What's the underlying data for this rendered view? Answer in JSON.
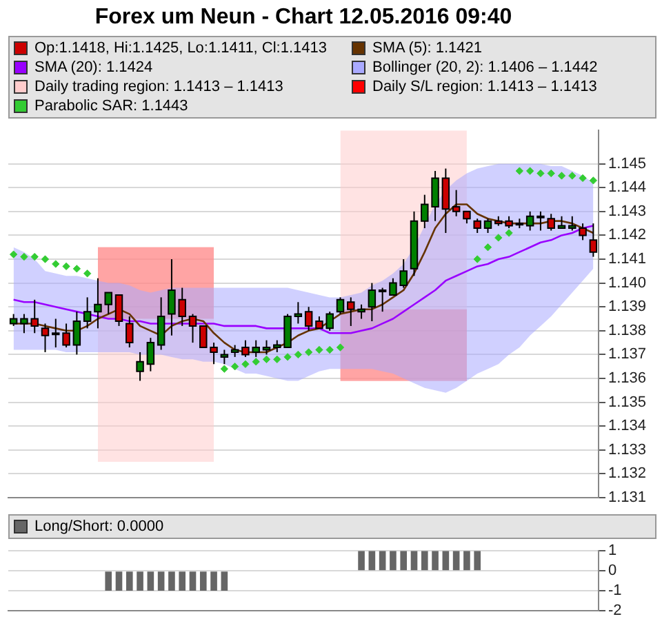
{
  "chart_data": [
    {
      "type": "candlestick",
      "title": "Forex um Neun - Chart 12.05.2016 09:40",
      "tick_labels": "y",
      "grid": "y",
      "legend": "top",
      "categories": [
        null,
        null,
        null,
        null,
        null,
        null,
        null,
        null,
        null,
        null,
        null,
        null,
        null,
        null,
        null,
        null,
        null,
        null,
        null,
        null,
        null,
        null,
        null,
        null,
        null,
        null,
        null,
        null,
        null,
        null,
        null,
        null,
        null,
        null,
        null,
        null,
        null,
        null,
        null,
        null,
        null,
        null,
        null,
        null,
        null,
        null,
        null,
        null,
        null,
        null,
        null,
        null,
        null,
        null,
        null,
        null
      ],
      "ylim": [
        1.131,
        1.1464
      ],
      "yticks": [
        1.131,
        1.132,
        1.133,
        1.134,
        1.135,
        1.136,
        1.137,
        1.138,
        1.139,
        {
          "value": 1.14,
          "label": "1.140"
        },
        1.141,
        1.142,
        1.143,
        1.144,
        1.145
      ],
      "series": [
        {
          "type": "candlestick",
          "name": "Op:1.1418, Hi:1.1425, Lo:1.1411, Cl:1.1413",
          "color": "#cc0000",
          "ohlc": [
            [
              1.1383,
              1.1387,
              1.1382,
              1.1385
            ],
            [
              1.1383,
              1.1387,
              1.1379,
              1.1385
            ],
            [
              1.1385,
              1.1393,
              1.1379,
              1.1382
            ],
            [
              1.1381,
              1.1383,
              1.1371,
              1.1378
            ],
            [
              1.1379,
              1.1385,
              1.1373,
              1.1379
            ],
            [
              1.1379,
              1.1383,
              1.1373,
              1.1374
            ],
            [
              1.1374,
              1.1388,
              1.137,
              1.1384
            ],
            [
              1.1384,
              1.1394,
              1.1381,
              1.1388
            ],
            [
              1.1388,
              1.1402,
              1.1381,
              1.1391
            ],
            [
              1.1391,
              1.1396,
              1.1387,
              1.1396
            ],
            [
              1.1395,
              1.1395,
              1.1382,
              1.1384
            ],
            [
              1.1383,
              1.1386,
              1.1373,
              1.1375
            ],
            [
              1.1363,
              1.1371,
              1.1359,
              1.1367
            ],
            [
              1.1366,
              1.1377,
              1.1363,
              1.1375
            ],
            [
              1.1374,
              1.1394,
              1.1372,
              1.1386
            ],
            [
              1.1387,
              1.141,
              1.1378,
              1.1397
            ],
            [
              1.1393,
              1.1398,
              1.1382,
              1.1386
            ],
            [
              1.1386,
              1.1387,
              1.1375,
              1.1382
            ],
            [
              1.1382,
              1.1382,
              1.1373,
              1.1373
            ],
            [
              1.1373,
              1.1375,
              1.1366,
              1.1371
            ],
            [
              1.1369,
              1.1372,
              1.1366,
              1.137
            ],
            [
              1.1371,
              1.1374,
              1.1369,
              1.1372
            ],
            [
              1.1373,
              1.1376,
              1.1369,
              1.137
            ],
            [
              1.1371,
              1.1376,
              1.1369,
              1.1373
            ],
            [
              1.1372,
              1.1376,
              1.137,
              1.1373
            ],
            [
              1.1373,
              1.1376,
              1.1371,
              1.1374
            ],
            [
              1.1373,
              1.1387,
              1.1373,
              1.1386
            ],
            [
              1.1386,
              1.1392,
              1.1383,
              1.1387
            ],
            [
              1.1388,
              1.139,
              1.138,
              1.1382
            ],
            [
              1.1384,
              1.1386,
              1.1381,
              1.1381
            ],
            [
              1.1381,
              1.1388,
              1.138,
              1.1387
            ],
            [
              1.1388,
              1.1394,
              1.1387,
              1.1393
            ],
            [
              1.1392,
              1.1394,
              1.1382,
              1.1389
            ],
            [
              1.1388,
              1.1391,
              1.1385,
              1.1389
            ],
            [
              1.139,
              1.14,
              1.1384,
              1.1397
            ],
            [
              1.1397,
              1.1398,
              1.1388,
              1.1397
            ],
            [
              1.1395,
              1.1402,
              1.1395,
              1.14
            ],
            [
              1.1399,
              1.141,
              1.1398,
              1.1405
            ],
            [
              1.1406,
              1.143,
              1.1403,
              1.1426
            ],
            [
              1.1426,
              1.1437,
              1.1423,
              1.1433
            ],
            [
              1.1432,
              1.1447,
              1.1426,
              1.1444
            ],
            [
              1.1444,
              1.1448,
              1.1421,
              1.1431
            ],
            [
              1.1432,
              1.1439,
              1.1428,
              1.143
            ],
            [
              1.143,
              1.143,
              1.1425,
              1.1427
            ],
            [
              1.1426,
              1.1427,
              1.1421,
              1.1423
            ],
            [
              1.1423,
              1.1427,
              1.1421,
              1.1426
            ],
            [
              1.1426,
              1.1428,
              1.1424,
              1.1425
            ],
            [
              1.1426,
              1.1428,
              1.1423,
              1.1424
            ],
            [
              1.1425,
              1.1427,
              1.1423,
              1.1425
            ],
            [
              1.1424,
              1.143,
              1.1422,
              1.1428
            ],
            [
              1.1428,
              1.143,
              1.1422,
              1.1428
            ],
            [
              1.1427,
              1.1429,
              1.1422,
              1.1423
            ],
            [
              1.1423,
              1.1428,
              1.1423,
              1.1424
            ],
            [
              1.1423,
              1.1428,
              1.1422,
              1.1424
            ],
            [
              1.1423,
              1.1425,
              1.1418,
              1.142
            ],
            [
              1.1418,
              1.1425,
              1.1411,
              1.1413
            ]
          ],
          "colors": [
            "#008000",
            "#008000",
            "#cc0000",
            "#cc0000",
            "#000000",
            "#cc0000",
            "#008000",
            "#008000",
            "#008000",
            "#008000",
            "#cc0000",
            "#cc0000",
            "#008000",
            "#008000",
            "#008000",
            "#008000",
            "#cc0000",
            "#cc0000",
            "#cc0000",
            "#cc0000",
            "#008000",
            "#008000",
            "#cc0000",
            "#008000",
            "#008000",
            "#008000",
            "#008000",
            "#008000",
            "#cc0000",
            "#cc0000",
            "#008000",
            "#008000",
            "#cc0000",
            "#008000",
            "#008000",
            "#000000",
            "#008000",
            "#008000",
            "#008000",
            "#008000",
            "#008000",
            "#cc0000",
            "#cc0000",
            "#cc0000",
            "#cc0000",
            "#008000",
            "#cc0000",
            "#cc0000",
            "#000000",
            "#008000",
            "#000000",
            "#cc0000",
            "#008000",
            "#008000",
            "#cc0000",
            "#cc0000"
          ]
        },
        {
          "type": "line",
          "name": "SMA (5): 1.1421",
          "color": "#663300",
          "values": [
            1.1383,
            1.1383,
            1.1383,
            1.1382,
            1.1381,
            1.138,
            1.138,
            1.1382,
            1.1385,
            1.1387,
            1.1389,
            1.1387,
            1.1382,
            1.138,
            1.1378,
            1.1382,
            1.1384,
            1.1385,
            1.1384,
            1.1379,
            1.1375,
            1.1372,
            1.1371,
            1.1371,
            1.1371,
            1.1373,
            1.1375,
            1.1378,
            1.138,
            1.1381,
            1.1384,
            1.1387,
            1.1388,
            1.1389,
            1.1389,
            1.1391,
            1.1394,
            1.1397,
            1.1404,
            1.1413,
            1.1423,
            1.1429,
            1.1433,
            1.1433,
            1.1429,
            1.1427,
            1.1426,
            1.1425,
            1.1425,
            1.1425,
            1.1425,
            1.1426,
            1.1426,
            1.1425,
            1.1423,
            1.1421
          ]
        },
        {
          "type": "line",
          "name": "SMA (20): 1.1424",
          "color": "#9900ff",
          "values": [
            1.1393,
            1.1392,
            1.1392,
            1.1391,
            1.139,
            1.1389,
            1.1388,
            1.1387,
            1.1386,
            1.1385,
            1.1385,
            1.1384,
            1.1384,
            1.1383,
            1.1383,
            1.1383,
            1.1383,
            1.1383,
            1.1383,
            1.1383,
            1.1382,
            1.1382,
            1.1382,
            1.1382,
            1.1381,
            1.1381,
            1.1381,
            1.1381,
            1.1381,
            1.1381,
            1.1379,
            1.1379,
            1.1379,
            1.138,
            1.1381,
            1.1383,
            1.1385,
            1.1388,
            1.1391,
            1.1394,
            1.1397,
            1.1401,
            1.1403,
            1.1405,
            1.1407,
            1.1408,
            1.141,
            1.1411,
            1.1413,
            1.1415,
            1.1417,
            1.1418,
            1.142,
            1.1421,
            1.1423,
            1.1424
          ]
        },
        {
          "type": "area",
          "name": "Bollinger (20, 2): 1.1406 – 1.1442",
          "color": "#aaaaff",
          "values": [
            null,
            null,
            null,
            null,
            null,
            null,
            null,
            null,
            null,
            null,
            null,
            null,
            null,
            null,
            null,
            null,
            null,
            null,
            null,
            null,
            null,
            null,
            null,
            null,
            null,
            null,
            null,
            null,
            null,
            null,
            null,
            null,
            null,
            null,
            null,
            null,
            null,
            null,
            null,
            null,
            null,
            null,
            null,
            null,
            null,
            null,
            null,
            null,
            null,
            null,
            null,
            null,
            null,
            null,
            null,
            null
          ],
          "lower": [
            1.1372,
            1.1372,
            1.1372,
            1.1372,
            1.1372,
            1.1371,
            1.1371,
            1.1371,
            1.1371,
            1.1371,
            1.1371,
            1.1371,
            1.137,
            1.137,
            1.137,
            1.1369,
            1.1368,
            1.1368,
            1.1367,
            1.1367,
            1.1366,
            1.1364,
            1.1362,
            1.1362,
            1.1361,
            1.136,
            1.1359,
            1.1359,
            1.1361,
            1.1363,
            1.1364,
            1.1364,
            1.1364,
            1.1364,
            1.1364,
            1.1363,
            1.1362,
            1.136,
            1.1358,
            1.1356,
            1.1355,
            1.1354,
            1.1356,
            1.1359,
            1.1362,
            1.1364,
            1.1366,
            1.137,
            1.1373,
            1.1378,
            1.1382,
            1.1386,
            1.1391,
            1.1396,
            1.1401,
            1.1406
          ],
          "upper": [
            1.1415,
            1.1413,
            1.141,
            1.1405,
            1.1404,
            1.1403,
            1.1403,
            1.1402,
            1.1401,
            1.14,
            1.14,
            1.1399,
            1.1397,
            1.1396,
            1.1397,
            1.1398,
            1.1398,
            1.1398,
            1.1398,
            1.1398,
            1.1398,
            1.1398,
            1.1398,
            1.1398,
            1.1398,
            1.1398,
            1.1398,
            1.1397,
            1.1396,
            1.1395,
            1.1394,
            1.1394,
            1.1395,
            1.1396,
            1.1399,
            1.1401,
            1.1404,
            1.1408,
            1.1415,
            1.1424,
            1.1433,
            1.1439,
            1.1443,
            1.1446,
            1.1448,
            1.1449,
            1.145,
            1.145,
            1.145,
            1.145,
            1.145,
            1.1449,
            1.1449,
            1.1447,
            1.1445,
            1.1442
          ]
        },
        {
          "type": "area",
          "name": "Daily trading region: 1.1413 – 1.1413",
          "color": "#ffcccc",
          "values": [
            null,
            null,
            null,
            null,
            null,
            null,
            null,
            null,
            null,
            null,
            null,
            null,
            null,
            null,
            null,
            null,
            null,
            null,
            null,
            null,
            null,
            null,
            null,
            null,
            null,
            null,
            null,
            null,
            null,
            null,
            null,
            null,
            null,
            null,
            null,
            null,
            null,
            null,
            null,
            null,
            null,
            null,
            null,
            null,
            null,
            null,
            null,
            null,
            null,
            null,
            null,
            null,
            null,
            null,
            null,
            null
          ],
          "lower": [
            null,
            null,
            null,
            null,
            null,
            null,
            null,
            null,
            1.1325,
            1.1325,
            1.1325,
            1.1325,
            1.1325,
            1.1325,
            1.1325,
            1.1325,
            1.1325,
            1.1325,
            1.1325,
            1.1325,
            null,
            null,
            null,
            null,
            null,
            null,
            null,
            null,
            null,
            null,
            null,
            1.1359,
            1.1359,
            1.1359,
            1.1359,
            1.1359,
            1.1359,
            1.1359,
            1.1359,
            1.1359,
            1.1359,
            1.1359,
            1.1359,
            1.1359,
            null,
            null,
            null,
            null,
            null,
            null,
            null,
            null,
            null,
            null,
            null,
            null
          ],
          "upper": [
            null,
            null,
            null,
            null,
            null,
            null,
            null,
            null,
            1.1415,
            1.1415,
            1.1415,
            1.1415,
            1.1415,
            1.1415,
            1.1415,
            1.1415,
            1.1415,
            1.1415,
            1.1415,
            1.1415,
            null,
            null,
            null,
            null,
            null,
            null,
            null,
            null,
            null,
            null,
            null,
            1.1464,
            1.1464,
            1.1464,
            1.1464,
            1.1464,
            1.1464,
            1.1464,
            1.1464,
            1.1464,
            1.1464,
            1.1464,
            1.1464,
            1.1464,
            null,
            null,
            null,
            null,
            null,
            null,
            null,
            null,
            null,
            null,
            null,
            null
          ]
        },
        {
          "type": "area",
          "name": "Daily S/L region: 1.1413 – 1.1413",
          "color": "#ff0000",
          "values": [
            null,
            null,
            null,
            null,
            null,
            null,
            null,
            null,
            null,
            null,
            null,
            null,
            null,
            null,
            null,
            null,
            null,
            null,
            null,
            null,
            null,
            null,
            null,
            null,
            null,
            null,
            null,
            null,
            null,
            null,
            null,
            null,
            null,
            null,
            null,
            null,
            null,
            null,
            null,
            null,
            null,
            null,
            null,
            null,
            null,
            null,
            null,
            null,
            null,
            null,
            null,
            null,
            null,
            null,
            null,
            null
          ],
          "lower": [
            null,
            null,
            null,
            null,
            null,
            null,
            null,
            null,
            1.1385,
            1.1385,
            1.1385,
            1.1385,
            1.1385,
            1.1385,
            1.1385,
            1.1385,
            1.1385,
            1.1385,
            1.1385,
            1.1385,
            null,
            null,
            null,
            null,
            null,
            null,
            null,
            null,
            null,
            null,
            null,
            1.1359,
            1.1359,
            1.1359,
            1.1359,
            1.1359,
            1.1359,
            1.1359,
            1.1359,
            1.1359,
            1.1359,
            1.1359,
            1.1359,
            1.1359,
            null,
            null,
            null,
            null,
            null,
            null,
            null,
            null,
            null,
            null,
            null,
            null
          ],
          "upper": [
            null,
            null,
            null,
            null,
            null,
            null,
            null,
            null,
            1.1415,
            1.1415,
            1.1415,
            1.1415,
            1.1415,
            1.1415,
            1.1415,
            1.1415,
            1.1415,
            1.1415,
            1.1415,
            1.1415,
            null,
            null,
            null,
            null,
            null,
            null,
            null,
            null,
            null,
            null,
            null,
            1.1389,
            1.1389,
            1.1389,
            1.1389,
            1.1389,
            1.1389,
            1.1389,
            1.1389,
            1.1389,
            1.1389,
            1.1389,
            1.1389,
            1.1389,
            null,
            null,
            null,
            null,
            null,
            null,
            null,
            null,
            null,
            null,
            null,
            null
          ]
        },
        {
          "type": "scatter",
          "name": "Parabolic SAR: 1.1443",
          "color": "#33cc33",
          "marker": "diamond",
          "values": [
            1.1412,
            1.1411,
            1.1411,
            1.141,
            1.1408,
            1.1407,
            1.1406,
            1.1404,
            null,
            null,
            null,
            null,
            null,
            null,
            null,
            null,
            null,
            null,
            null,
            null,
            1.1364,
            1.1365,
            1.1366,
            1.1367,
            1.1368,
            1.1368,
            1.1369,
            1.137,
            1.1371,
            1.1372,
            1.1372,
            1.1373,
            null,
            null,
            null,
            null,
            null,
            null,
            null,
            null,
            null,
            null,
            null,
            null,
            1.141,
            1.1415,
            1.1419,
            1.1421,
            1.1447,
            1.1447,
            1.1446,
            1.1446,
            1.1445,
            1.1445,
            1.1444,
            1.1443
          ]
        }
      ]
    },
    {
      "type": "bar",
      "tick_labels": "y",
      "grid": "y",
      "legend": "top",
      "categories": [
        null,
        null,
        null,
        null,
        null,
        null,
        null,
        null,
        null,
        null,
        null,
        null,
        null,
        null,
        null,
        null,
        null,
        null,
        null,
        null,
        null,
        null,
        null,
        null,
        null,
        null,
        null,
        null,
        null,
        null,
        null,
        null,
        null,
        null,
        null,
        null,
        null,
        null,
        null,
        null,
        null,
        null,
        null,
        null,
        null,
        null,
        null,
        null,
        null,
        null,
        null,
        null,
        null,
        null,
        null,
        null
      ],
      "ylim": [
        -2,
        1
      ],
      "yticks": [
        -2,
        -1,
        0,
        1
      ],
      "series": [
        {
          "name": "Long/Short: 0.0000",
          "color": "#666666",
          "values": [
            0,
            0,
            0,
            0,
            0,
            0,
            0,
            0,
            0,
            -1,
            -1,
            -1,
            -1,
            -1,
            -1,
            -1,
            -1,
            -1,
            -1,
            -1,
            -1,
            0,
            0,
            0,
            0,
            0,
            0,
            0,
            0,
            0,
            0,
            0,
            0,
            1,
            1,
            1,
            1,
            1,
            1,
            1,
            1,
            1,
            1,
            1,
            1,
            0,
            0,
            0,
            0,
            0,
            0,
            0,
            0,
            0,
            0,
            0
          ]
        }
      ]
    }
  ]
}
